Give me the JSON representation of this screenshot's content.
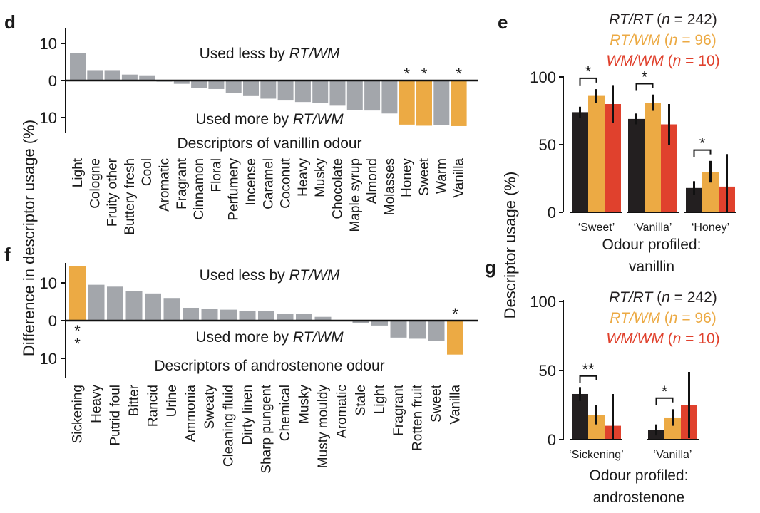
{
  "panels": {
    "d": "d",
    "e": "e",
    "f": "f",
    "g": "g"
  },
  "shared_ylabel_left": "Difference in descriptor usage (%)",
  "shared_ylabel_right": "Descriptor usage (%)",
  "colors": {
    "grey": "#a3a6ab",
    "highlight": "#ecaa44",
    "rtrt": "#231f20",
    "rtwm": "#ecaa44",
    "wmwm": "#e0412d"
  },
  "chart_data": [
    {
      "id": "d",
      "type": "bar",
      "title": "Descriptors of vanillin odour",
      "annotation_top": "Used less by RT/WM",
      "annotation_bottom": "Used more by RT/WM",
      "yticks": [
        "10",
        "0",
        "10"
      ],
      "ylim": [
        -13,
        14
      ],
      "categories": [
        "Light",
        "Cologne",
        "Fruity other",
        "Buttery fresh",
        "Cool",
        "Aromatic",
        "Fragrant",
        "Cinnamon",
        "Floral",
        "Perfumery",
        "Incense",
        "Caramel",
        "Coconut",
        "Heavy",
        "Musky",
        "Chocolate",
        "Maple syrup",
        "Almond",
        "Molasses",
        "Honey",
        "Sweet",
        "Warm",
        "Vanilla"
      ],
      "values": [
        7.5,
        2.8,
        2.8,
        1.6,
        1.4,
        -0.3,
        -0.9,
        -2.1,
        -2.3,
        -3.4,
        -4.2,
        -4.9,
        -5.4,
        -5.8,
        -6.1,
        -6.8,
        -8.0,
        -8.1,
        -8.9,
        -11.9,
        -12.2,
        -12.1,
        -12.3
      ],
      "highlighted": [
        false,
        false,
        false,
        false,
        false,
        false,
        false,
        false,
        false,
        false,
        false,
        false,
        false,
        false,
        false,
        false,
        false,
        false,
        false,
        true,
        true,
        false,
        true
      ],
      "stars": [
        "",
        "",
        "",
        "",
        "",
        "",
        "",
        "",
        "",
        "",
        "",
        "",
        "",
        "",
        "",
        "",
        "",
        "",
        "",
        "*",
        "*",
        "",
        "*"
      ]
    },
    {
      "id": "f",
      "type": "bar",
      "title": "Descriptors of androstenone odour",
      "annotation_top": "Used less by RT/WM",
      "annotation_bottom": "Used more by RT/WM",
      "yticks": [
        "10",
        "0",
        "10"
      ],
      "ylim": [
        -13,
        15
      ],
      "categories": [
        "Sickening",
        "Heavy",
        "Putrid foul",
        "Bitter",
        "Rancid",
        "Urine",
        "Ammonia",
        "Sweaty",
        "Cleaning fluid",
        "Dirty linen",
        "Sharp pungent",
        "Chemical",
        "Musky",
        "Musty mouldy",
        "Aromatic",
        "Stale",
        "Light",
        "Fragrant",
        "Rotten fruit",
        "Sweet",
        "Vanilla"
      ],
      "values": [
        14.5,
        9.5,
        9.0,
        7.8,
        7.2,
        6.0,
        3.4,
        3.1,
        2.9,
        2.6,
        2.5,
        1.8,
        1.8,
        1.0,
        0.0,
        -0.6,
        -1.3,
        -4.5,
        -4.8,
        -5.3,
        -9.0
      ],
      "highlighted": [
        true,
        false,
        false,
        false,
        false,
        false,
        false,
        false,
        false,
        false,
        false,
        false,
        false,
        false,
        false,
        false,
        false,
        false,
        false,
        false,
        true
      ],
      "stars": [
        "**",
        "",
        "",
        "",
        "",
        "",
        "",
        "",
        "",
        "",
        "",
        "",
        "",
        "",
        "",
        "",
        "",
        "",
        "",
        "",
        "*"
      ]
    },
    {
      "id": "e",
      "type": "bar",
      "xlabel": "Odour profiled: vanillin",
      "ylim": [
        0,
        100
      ],
      "yticks": [
        "100",
        "50",
        "0"
      ],
      "legend": [
        "RT/RT (n = 242)",
        "RT/WM (n = 96)",
        "WM/WM (n = 10)"
      ],
      "categories": [
        "‘Sweet’",
        "‘Vanilla’",
        "‘Honey’"
      ],
      "series": [
        {
          "name": "RT/RT (n = 242)",
          "values": [
            74,
            69,
            18
          ],
          "err": [
            4,
            4,
            5
          ]
        },
        {
          "name": "RT/WM (n = 96)",
          "values": [
            86,
            81,
            30
          ],
          "err": [
            5,
            6,
            8
          ]
        },
        {
          "name": "WM/WM (n = 10)",
          "values": [
            80,
            65,
            19
          ],
          "err": [
            14,
            15,
            24
          ]
        }
      ],
      "sig": [
        {
          "category": 0,
          "label": "*"
        },
        {
          "category": 1,
          "label": "*"
        },
        {
          "category": 2,
          "label": "*"
        }
      ]
    },
    {
      "id": "g",
      "type": "bar",
      "xlabel": "Odour profiled: androstenone",
      "ylim": [
        0,
        100
      ],
      "yticks": [
        "100",
        "50",
        "0"
      ],
      "legend": [
        "RT/RT (n = 242)",
        "RT/WM (n = 96)",
        "WM/WM (n = 10)"
      ],
      "categories": [
        "‘Sickening’",
        "‘Vanilla’"
      ],
      "series": [
        {
          "name": "RT/RT (n = 242)",
          "values": [
            33,
            7
          ],
          "err": [
            5,
            4
          ]
        },
        {
          "name": "RT/WM (n = 96)",
          "values": [
            18,
            16
          ],
          "err": [
            7,
            6
          ]
        },
        {
          "name": "WM/WM (n = 10)",
          "values": [
            10,
            25
          ],
          "err": [
            23,
            24
          ]
        }
      ],
      "sig": [
        {
          "category": 0,
          "label": "**"
        },
        {
          "category": 1,
          "label": "*"
        }
      ]
    }
  ]
}
